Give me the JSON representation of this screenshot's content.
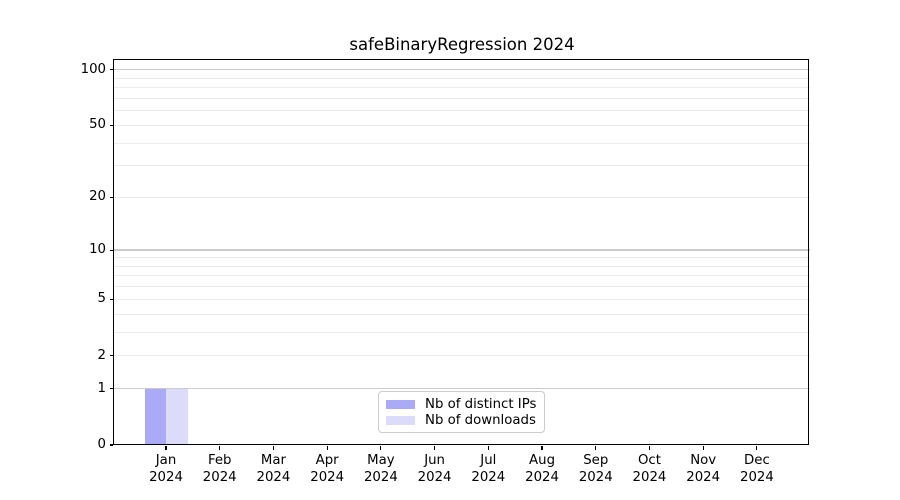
{
  "chart_data": {
    "type": "bar",
    "title": "safeBinaryRegression 2024",
    "x_year": "2024",
    "categories": [
      "Jan",
      "Feb",
      "Mar",
      "Apr",
      "May",
      "Jun",
      "Jul",
      "Aug",
      "Sep",
      "Oct",
      "Nov",
      "Dec"
    ],
    "series": [
      {
        "name": "Nb of distinct IPs",
        "color": "#aaaaf7",
        "values": [
          1,
          0,
          0,
          0,
          0,
          0,
          0,
          0,
          0,
          0,
          0,
          0
        ]
      },
      {
        "name": "Nb of downloads",
        "color": "#dcdcfa",
        "values": [
          1,
          0,
          0,
          0,
          0,
          0,
          0,
          0,
          0,
          0,
          0,
          0
        ]
      }
    ],
    "y_scale": "log1p",
    "y_axis_ticks": [
      0,
      1,
      2,
      5,
      10,
      20,
      50,
      100
    ],
    "y_major_gridlines": [
      1,
      10,
      100
    ],
    "y_light_gridlines": [
      2,
      3,
      4,
      5,
      6,
      7,
      8,
      9,
      20,
      30,
      40,
      50,
      60,
      70,
      80,
      90
    ],
    "ylim": [
      0,
      113
    ],
    "xlabel": "",
    "ylabel": "",
    "grid": "horizontal",
    "legend_position": "inside-bottom-center",
    "colors": {
      "major_grid": "#cccccc",
      "light_grid": "#ebebeb",
      "spine": "#000000",
      "background": "#ffffff",
      "text": "#000000"
    }
  }
}
